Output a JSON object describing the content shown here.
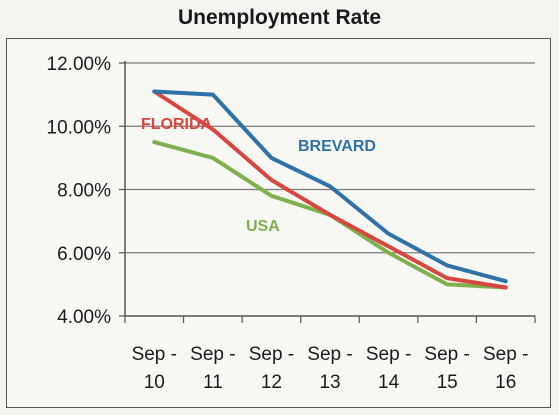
{
  "chart_data": {
    "type": "line",
    "title": "Unemployment Rate",
    "xlabel": "",
    "ylabel": "",
    "categories": [
      "Sep - 10",
      "Sep - 11",
      "Sep - 12",
      "Sep - 13",
      "Sep - 14",
      "Sep - 15",
      "Sep - 16"
    ],
    "ylim": [
      4,
      12
    ],
    "yticks": [
      "4.00%",
      "6.00%",
      "8.00%",
      "10.00%",
      "12.00%"
    ],
    "ytick_values": [
      4,
      6,
      8,
      10,
      12
    ],
    "grid": true,
    "legend": "inline labels",
    "series": [
      {
        "name": "BREVARD",
        "color": "#2f72a8",
        "values": [
          11.1,
          11.0,
          9.0,
          8.1,
          6.6,
          5.6,
          5.1
        ]
      },
      {
        "name": "FLORIDA",
        "color": "#d9463f",
        "values": [
          11.1,
          9.9,
          8.3,
          7.2,
          6.2,
          5.2,
          4.9
        ]
      },
      {
        "name": "USA",
        "color": "#7fb04e",
        "values": [
          9.5,
          9.0,
          7.8,
          7.2,
          6.0,
          5.0,
          4.9
        ]
      }
    ]
  }
}
